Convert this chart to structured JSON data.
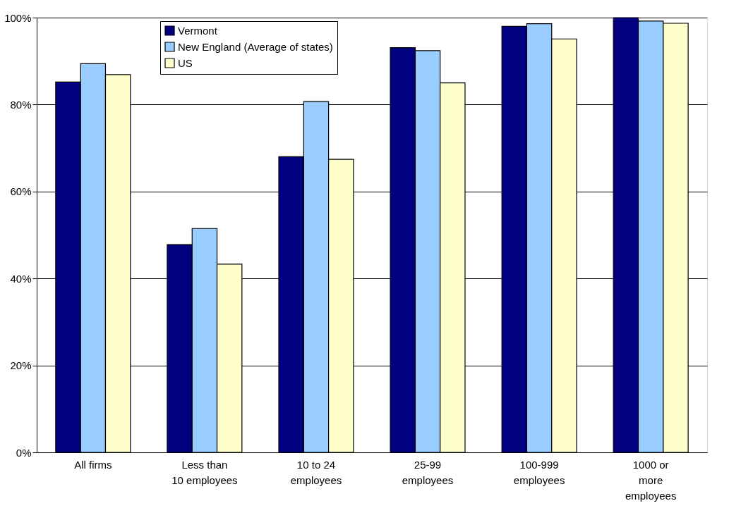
{
  "chart_data": {
    "type": "bar",
    "categories": [
      "All firms",
      "Less than\n10 employees",
      "10 to 24\nemployees",
      "25-99\nemployees",
      "100-999\nemployees",
      "1000 or\nmore\nemployees"
    ],
    "series": [
      {
        "name": "Vermont",
        "color": "#000080",
        "values": [
          85.2,
          47.8,
          68.0,
          93.1,
          98.0,
          100
        ]
      },
      {
        "name": "New England (Average of states)",
        "color": "#99ccff",
        "values": [
          89.4,
          51.5,
          80.7,
          92.4,
          98.6,
          99.2
        ]
      },
      {
        "name": "US",
        "color": "#ffffcc",
        "values": [
          86.9,
          43.3,
          67.4,
          85.0,
          95.1,
          98.7
        ]
      }
    ],
    "ylim": [
      0,
      100
    ],
    "yticks": [
      {
        "value": 0,
        "label": "0%"
      },
      {
        "value": 20,
        "label": "20%"
      },
      {
        "value": 40,
        "label": "40%"
      },
      {
        "value": 60,
        "label": "60%"
      },
      {
        "value": 80,
        "label": "80%"
      },
      {
        "value": 100,
        "label": "100%"
      }
    ],
    "grid": "y",
    "legend": "top left"
  }
}
